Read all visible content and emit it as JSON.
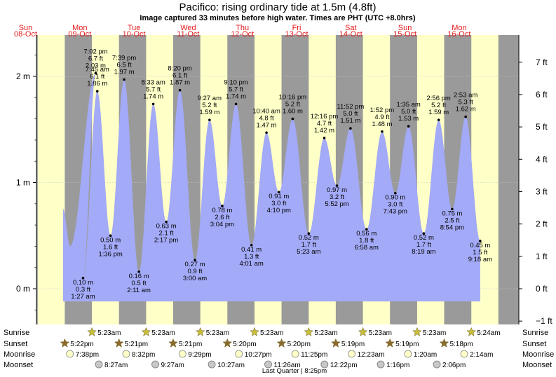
{
  "chart_data": {
    "type": "area",
    "title": "Pacifico: rising  ordinary tide at 1.5m (4.8ft)",
    "subtitle": "Image captured 33 minutes before high water. Times are PHT (UTC +8.0hrs)",
    "days": [
      {
        "weekday": "Sun",
        "date": "08-Oct"
      },
      {
        "weekday": "Mon",
        "date": "09-Oct"
      },
      {
        "weekday": "Tue",
        "date": "10-Oct"
      },
      {
        "weekday": "Wed",
        "date": "11-Oct"
      },
      {
        "weekday": "Thu",
        "date": "12-Oct"
      },
      {
        "weekday": "Fri",
        "date": "13-Oct"
      },
      {
        "weekday": "Sat",
        "date": "14-Oct"
      },
      {
        "weekday": "Sun",
        "date": "15-Oct"
      },
      {
        "weekday": "Mon",
        "date": "16-Oct"
      }
    ],
    "y_left": {
      "unit": "m",
      "ticks": [
        "0 m",
        "1 m",
        "2 m"
      ],
      "values": [
        0,
        1,
        2
      ]
    },
    "y_right": {
      "unit": "ft",
      "ticks": [
        "−1 ft",
        "0 ft",
        "1 ft",
        "2 ft",
        "3 ft",
        "4 ft",
        "5 ft",
        "6 ft",
        "7 ft"
      ],
      "values": [
        -1,
        0,
        1,
        2,
        3,
        4,
        5,
        6,
        7
      ]
    },
    "ylim_m": [
      -0.3,
      2.35
    ],
    "tides": [
      {
        "time": "7:02 pm",
        "ft": "6.7 ft",
        "m": "2.03 m",
        "value": 2.03,
        "type": "high",
        "day": 0.5,
        "hour": 19.03
      },
      {
        "time": "1:27 am",
        "ft": "0.3 ft",
        "m": "0.10 m",
        "value": 0.1,
        "type": "low",
        "day": 1,
        "hour": 1.45
      },
      {
        "time": "7:45 am",
        "ft": "6.1 ft",
        "m": "1.86 m",
        "value": 1.86,
        "type": "high",
        "day": 1,
        "hour": 7.75
      },
      {
        "time": "1:36 pm",
        "ft": "1.6 ft",
        "m": "0.50 m",
        "value": 0.5,
        "type": "low",
        "day": 1,
        "hour": 13.6
      },
      {
        "time": "7:39 pm",
        "ft": "6.5 ft",
        "m": "1.97 m",
        "value": 1.97,
        "type": "high",
        "day": 1,
        "hour": 19.65
      },
      {
        "time": "2:11 am",
        "ft": "0.5 ft",
        "m": "0.16 m",
        "value": 0.16,
        "type": "low",
        "day": 2,
        "hour": 2.18
      },
      {
        "time": "8:33 am",
        "ft": "5.7 ft",
        "m": "1.74 m",
        "value": 1.74,
        "type": "high",
        "day": 2,
        "hour": 8.55
      },
      {
        "time": "2:17 pm",
        "ft": "2.1 ft",
        "m": "0.63 m",
        "value": 0.63,
        "type": "low",
        "day": 2,
        "hour": 14.28
      },
      {
        "time": "8:20 pm",
        "ft": "6.1 ft",
        "m": "1.87 m",
        "value": 1.87,
        "type": "high",
        "day": 2,
        "hour": 20.33
      },
      {
        "time": "3:00 am",
        "ft": "0.9 ft",
        "m": "0.27 m",
        "value": 0.27,
        "type": "low",
        "day": 3,
        "hour": 3.0
      },
      {
        "time": "9:27 am",
        "ft": "5.2 ft",
        "m": "1.59 m",
        "value": 1.59,
        "type": "high",
        "day": 3,
        "hour": 9.45
      },
      {
        "time": "3:04 pm",
        "ft": "2.6 ft",
        "m": "0.78 m",
        "value": 0.78,
        "type": "low",
        "day": 3,
        "hour": 15.07
      },
      {
        "time": "9:10 pm",
        "ft": "5.7 ft",
        "m": "1.74 m",
        "value": 1.74,
        "type": "high",
        "day": 3,
        "hour": 21.17
      },
      {
        "time": "4:01 am",
        "ft": "1.3 ft",
        "m": "0.41 m",
        "value": 0.41,
        "type": "low",
        "day": 4,
        "hour": 4.02
      },
      {
        "time": "10:40 am",
        "ft": "4.8 ft",
        "m": "1.47 m",
        "value": 1.47,
        "type": "high",
        "day": 4,
        "hour": 10.67
      },
      {
        "time": "4:10 pm",
        "ft": "3.0 ft",
        "m": "0.91 m",
        "value": 0.91,
        "type": "low",
        "day": 4,
        "hour": 16.17
      },
      {
        "time": "10:16 pm",
        "ft": "5.2 ft",
        "m": "1.60 m",
        "value": 1.6,
        "type": "high",
        "day": 4,
        "hour": 22.27
      },
      {
        "time": "5:23 am",
        "ft": "1.7 ft",
        "m": "0.52 m",
        "value": 0.52,
        "type": "low",
        "day": 5,
        "hour": 5.38
      },
      {
        "time": "12:16 pm",
        "ft": "4.7 ft",
        "m": "1.42 m",
        "value": 1.42,
        "type": "high",
        "day": 5,
        "hour": 12.27
      },
      {
        "time": "5:52 pm",
        "ft": "3.2 ft",
        "m": "0.97 m",
        "value": 0.97,
        "type": "low",
        "day": 5,
        "hour": 17.87
      },
      {
        "time": "11:52 pm",
        "ft": "5.0 ft",
        "m": "1.51 m",
        "value": 1.51,
        "type": "high",
        "day": 5,
        "hour": 23.87
      },
      {
        "time": "6:58 am",
        "ft": "1.8 ft",
        "m": "0.56 m",
        "value": 0.56,
        "type": "low",
        "day": 6,
        "hour": 6.97
      },
      {
        "time": "1:52 pm",
        "ft": "4.9 ft",
        "m": "1.48 m",
        "value": 1.48,
        "type": "high",
        "day": 6,
        "hour": 13.87
      },
      {
        "time": "7:43 pm",
        "ft": "3.0 ft",
        "m": "0.90 m",
        "value": 0.9,
        "type": "low",
        "day": 6,
        "hour": 19.72
      },
      {
        "time": "1:35 am",
        "ft": "5.0 ft",
        "m": "1.53 m",
        "value": 1.53,
        "type": "high",
        "day": 7,
        "hour": 1.58
      },
      {
        "time": "8:19 am",
        "ft": "1.7 ft",
        "m": "0.52 m",
        "value": 0.52,
        "type": "low",
        "day": 7,
        "hour": 8.32
      },
      {
        "time": "2:56 pm",
        "ft": "5.2 ft",
        "m": "1.59 m",
        "value": 1.59,
        "type": "high",
        "day": 7,
        "hour": 14.93
      },
      {
        "time": "8:54 pm",
        "ft": "2.5 ft",
        "m": "0.75 m",
        "value": 0.75,
        "type": "low",
        "day": 7,
        "hour": 20.9
      },
      {
        "time": "2:53 am",
        "ft": "5.3 ft",
        "m": "1.62 m",
        "value": 1.62,
        "type": "high",
        "day": 8,
        "hour": 2.88
      },
      {
        "time": "9:18 am",
        "ft": "1.5 ft",
        "m": "0.45 m",
        "value": 0.45,
        "type": "low",
        "day": 8,
        "hour": 9.3
      }
    ],
    "astro": {
      "row_labels": {
        "sunrise": "Sunrise",
        "sunset": "Sunset",
        "moonrise": "Moonrise",
        "moonset": "Moonset"
      },
      "sunrise": [
        "5:23am",
        "5:23am",
        "5:23am",
        "5:23am",
        "5:23am",
        "5:23am",
        "5:23am",
        "5:24am"
      ],
      "sunset": [
        "5:22pm",
        "5:21pm",
        "5:21pm",
        "5:20pm",
        "5:20pm",
        "5:19pm",
        "5:19pm",
        "5:18pm"
      ],
      "moonrise": [
        "7:38pm",
        "8:32pm",
        "9:29pm",
        "10:27pm",
        "11:25pm",
        "12:23am",
        "1:20am",
        "2:14am"
      ],
      "moonset": [
        "8:27am",
        "9:27am",
        "10:27am",
        "11:26am",
        "12:22pm",
        "1:16pm",
        "2:06pm"
      ],
      "moon_phase": "Last Quarter | 8:25pm"
    },
    "colors": {
      "day": "#ffffc8",
      "night": "#9a9a9a",
      "water": "#a3aaf7",
      "label": "#e41a1c",
      "sun": "#c8bf3a",
      "sunset": "#8b6b2c"
    }
  }
}
